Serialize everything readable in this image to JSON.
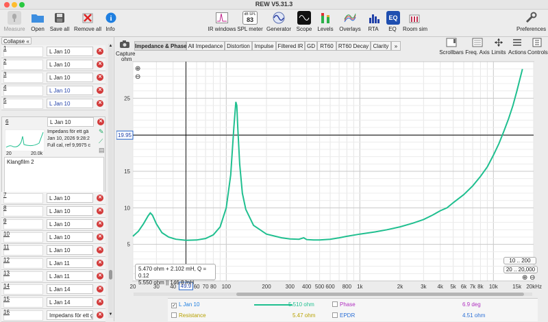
{
  "window": {
    "title": "REW V5.31.3"
  },
  "toolbar_left": [
    {
      "label": "Measure",
      "icon": "microphone-icon",
      "disabled": true
    },
    {
      "label": "Open",
      "icon": "folder-icon"
    },
    {
      "label": "Save all",
      "icon": "save-icon"
    },
    {
      "label": "Remove all",
      "icon": "remove-all-icon"
    },
    {
      "label": "Info",
      "icon": "info-icon"
    }
  ],
  "toolbar_right": [
    {
      "label": "IR windows",
      "icon": "ir-windows-icon"
    },
    {
      "label": "SPL meter",
      "icon": "spl-meter-icon",
      "badge_top": "dB SPL",
      "badge_value": "83"
    },
    {
      "label": "Generator",
      "icon": "generator-icon"
    },
    {
      "label": "Scope",
      "icon": "scope-icon"
    },
    {
      "label": "Levels",
      "icon": "levels-icon"
    },
    {
      "label": "Overlays",
      "icon": "overlays-icon"
    },
    {
      "label": "RTA",
      "icon": "rta-icon"
    },
    {
      "label": "EQ",
      "icon": "eq-icon"
    },
    {
      "label": "Room sim",
      "icon": "room-sim-icon"
    }
  ],
  "preferences": {
    "label": "Preferences"
  },
  "sidebar": {
    "collapse_label": "Collapse",
    "collapse_icon": "«",
    "measurements_top": [
      {
        "num": "1",
        "name": "L Jan 10"
      },
      {
        "num": "2",
        "name": "L Jan 10"
      },
      {
        "num": "3",
        "name": "L Jan 10"
      },
      {
        "num": "4",
        "name": "L Jan 10",
        "highlight": true
      },
      {
        "num": "5",
        "name": "L Jan 10",
        "highlight": true
      }
    ],
    "expanded": {
      "num": "6",
      "name": "L Jan 10",
      "desc_line1": "Impedans för ett gä",
      "desc_line2": "Jan 10, 2026 9:28:2",
      "desc_line3": "Full cal, ref 9,9975 c",
      "axis_min": "20",
      "axis_max": "20.0k",
      "notes": "Klangfilm 2"
    },
    "measurements_bottom": [
      {
        "num": "7",
        "name": "L Jan 10"
      },
      {
        "num": "8",
        "name": "L Jan 10"
      },
      {
        "num": "9",
        "name": "L Jan 10"
      },
      {
        "num": "10",
        "name": "L Jan 10"
      },
      {
        "num": "11",
        "name": "L Jan 10"
      },
      {
        "num": "12",
        "name": "L Jan 11"
      },
      {
        "num": "13",
        "name": "L Jan 11"
      },
      {
        "num": "14",
        "name": "L Jan 14"
      },
      {
        "num": "15",
        "name": "L Jan 14"
      },
      {
        "num": "16",
        "name": "Impedans för ett gä"
      }
    ]
  },
  "capture": {
    "label": "Capture"
  },
  "tabs": [
    "Impedance & Phase",
    "All Impedance",
    "Distortion",
    "Impulse",
    "Filtered IR",
    "GD",
    "RT60",
    "RT60 Decay",
    "Clarity",
    "»"
  ],
  "right_tools": [
    {
      "label": "Scrollbars",
      "icon": "scrollbars-icon"
    },
    {
      "label": "Freq. Axis",
      "icon": "freq-axis-icon"
    },
    {
      "label": "Limits",
      "icon": "limits-icon"
    },
    {
      "label": "Actions",
      "icon": "actions-icon"
    },
    {
      "label": "Controls",
      "icon": "controls-icon"
    }
  ],
  "plot": {
    "y_unit": "ohm",
    "x_unit": "20kHz",
    "cursor_y_label": "19.95",
    "cursor_x_label": "49.9",
    "info_line1": "5.470 ohm + 2.102 mH, Q = 0.12",
    "info_line2": "5.550 ohm || 146.8 mH",
    "range_1": "10 .. 200",
    "range_2": "20 .. 20,000",
    "zoom_in": "⊕",
    "zoom_out": "⊖"
  },
  "chart_data": {
    "type": "line",
    "xlabel": "",
    "ylabel": "ohm",
    "xscale": "log",
    "xlim": [
      20,
      20000
    ],
    "ylim": [
      0,
      30
    ],
    "x_ticks": [
      "20",
      "30",
      "40",
      "50",
      "60",
      "70",
      "80",
      "100",
      "200",
      "300",
      "400",
      "500",
      "600",
      "800",
      "1k",
      "2k",
      "3k",
      "4k",
      "5k",
      "6k",
      "7k",
      "8k",
      "10k",
      "15k",
      "20kHz"
    ],
    "y_ticks": [
      "5",
      "10",
      "15",
      "20",
      "25"
    ],
    "series": [
      {
        "name": "L Jan 10",
        "color": "#1fbf8f",
        "x": [
          20,
          22,
          24,
          26,
          27,
          28,
          30,
          33,
          37,
          42,
          50,
          60,
          70,
          80,
          90,
          100,
          108,
          114,
          118,
          120,
          122,
          126,
          132,
          140,
          160,
          200,
          260,
          300,
          350,
          380,
          400,
          450,
          500,
          600,
          700,
          800,
          1000,
          1300,
          1600,
          2000,
          2500,
          3000,
          3500,
          4000,
          4500,
          5000,
          6000,
          7000,
          8000,
          9000,
          10000,
          11000,
          12000,
          13000,
          14000,
          15000,
          16500
        ],
        "y": [
          6.1,
          6.8,
          7.8,
          8.9,
          9.3,
          9.0,
          7.8,
          6.6,
          6.0,
          5.7,
          5.55,
          5.6,
          5.8,
          6.3,
          7.4,
          10.0,
          14.5,
          21.0,
          24.5,
          24.0,
          21.0,
          16.0,
          12.0,
          9.8,
          7.6,
          6.4,
          5.9,
          5.75,
          5.7,
          5.9,
          5.65,
          5.6,
          5.6,
          5.7,
          5.9,
          6.1,
          6.4,
          6.7,
          7.0,
          7.4,
          7.9,
          8.4,
          9.0,
          9.6,
          10.0,
          10.7,
          11.8,
          13.0,
          14.3,
          15.6,
          17.2,
          18.8,
          20.5,
          22.2,
          24.0,
          26.0,
          29.0
        ]
      }
    ]
  },
  "legend": {
    "series_name": "L Jan 10",
    "series_value": "5.510 ohm",
    "phase_label": "Phase",
    "phase_value": "6.9 deg",
    "resistance_label": "Resistance",
    "resistance_value": "5.47 ohm",
    "epdr_label": "EPDR",
    "epdr_value": "4.51 ohm",
    "colors": {
      "series": "#1fbf8f",
      "phase": "#b030c0",
      "resistance": "#b7a100",
      "epdr": "#2a6fd6"
    }
  }
}
